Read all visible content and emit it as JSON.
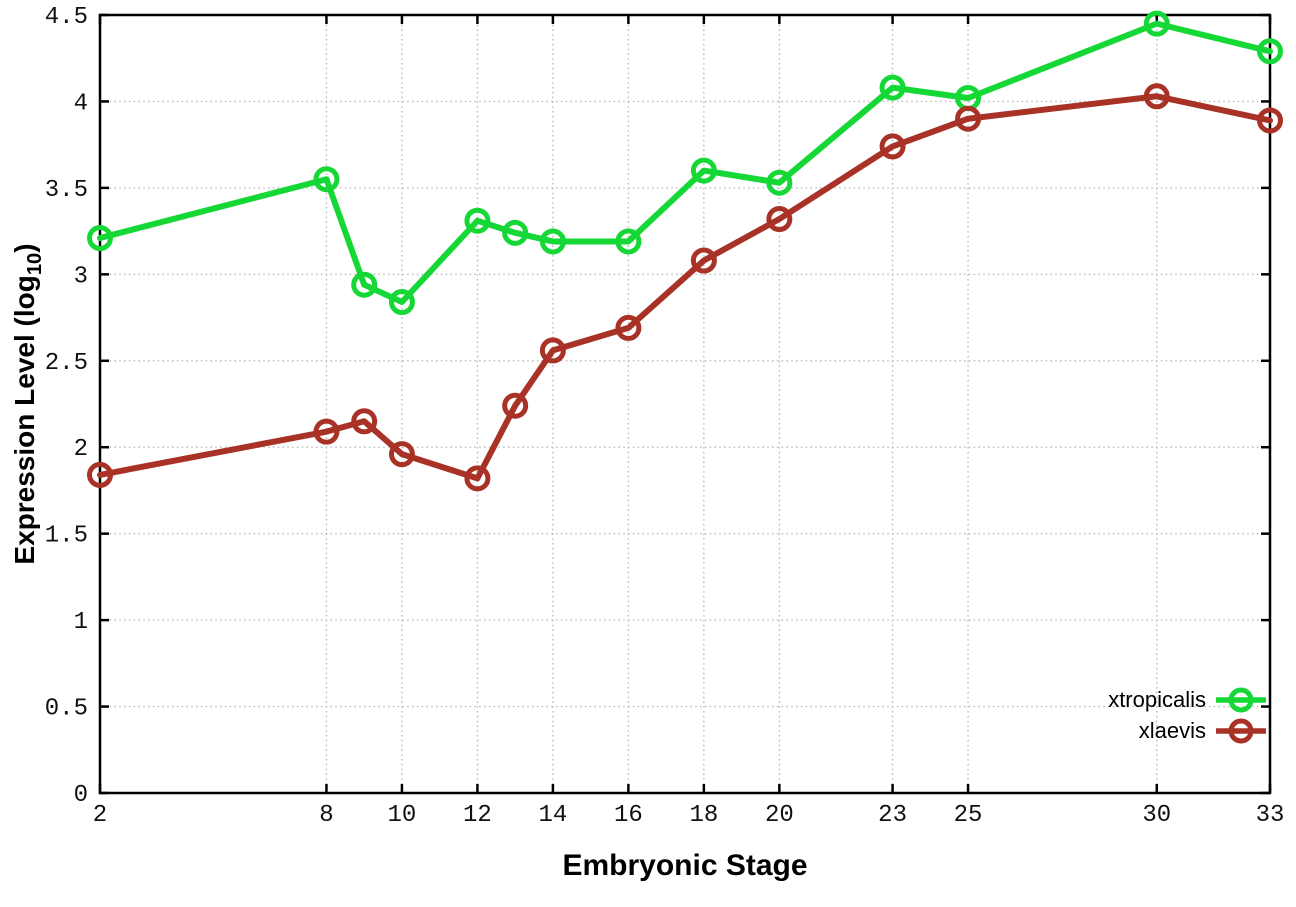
{
  "chart_data": {
    "type": "line",
    "title": "",
    "xlabel": "Embryonic Stage",
    "ylabel_main": "Expression Level (log",
    "ylabel_sub": "10",
    "ylabel_close": ")",
    "xlim": [
      2,
      33
    ],
    "ylim": [
      0,
      4.5
    ],
    "x_ticks": [
      2,
      8,
      10,
      12,
      14,
      16,
      18,
      20,
      23,
      25,
      30,
      33
    ],
    "x_tick_labels": [
      "2",
      "8",
      "10",
      "12",
      "14",
      "16",
      "18",
      "20",
      "23",
      "25",
      "30",
      "33"
    ],
    "y_ticks": [
      0,
      0.5,
      1,
      1.5,
      2,
      2.5,
      3,
      3.5,
      4,
      4.5
    ],
    "y_tick_labels": [
      "0",
      "0.5",
      "1",
      "1.5",
      "2",
      "2.5",
      "3",
      "3.5",
      "4",
      "4.5"
    ],
    "grid": true,
    "grid_style": "dotted",
    "legend_position": "bottom-right-inside",
    "marker": "open-circle",
    "x": [
      2,
      8,
      9,
      10,
      12,
      13,
      14,
      16,
      18,
      20,
      23,
      25,
      30,
      33
    ],
    "series": [
      {
        "name": "xtropicalis",
        "color": "#15d836",
        "values": [
          3.21,
          3.55,
          2.94,
          2.84,
          3.31,
          3.24,
          3.19,
          3.19,
          3.6,
          3.53,
          4.08,
          4.02,
          4.45,
          4.29
        ]
      },
      {
        "name": "xlaevis",
        "color": "#a93226",
        "values": [
          1.84,
          2.09,
          2.15,
          1.96,
          1.82,
          2.24,
          2.56,
          2.69,
          3.08,
          3.32,
          3.74,
          3.9,
          4.03,
          3.89
        ]
      }
    ],
    "colors": {
      "grid": "#bdbdbd",
      "axis": "#000000",
      "text": "#111111"
    }
  }
}
